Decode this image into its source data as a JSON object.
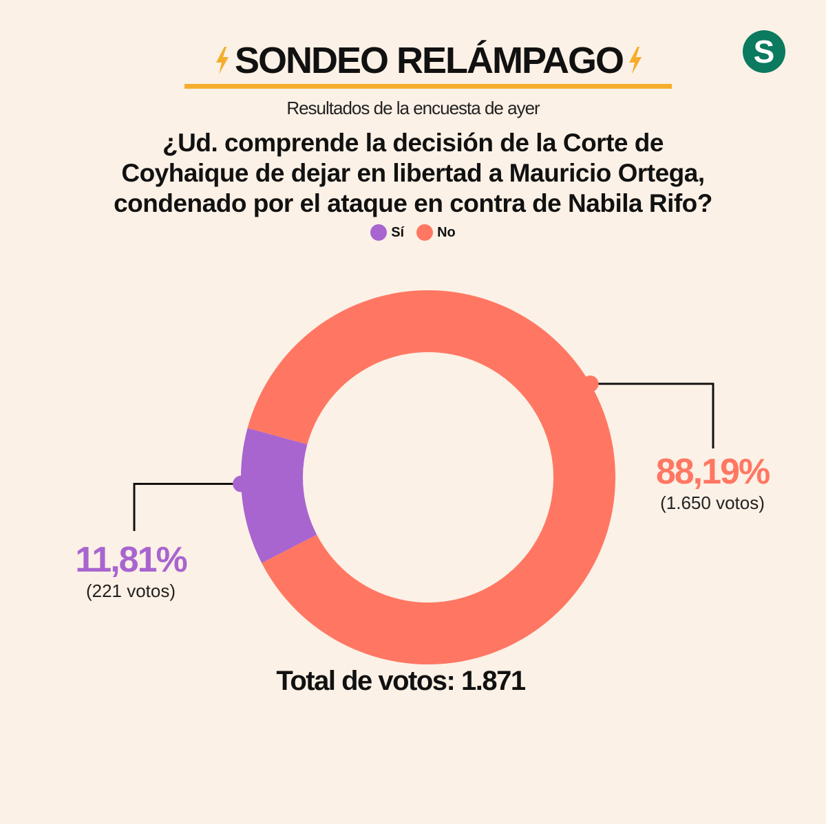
{
  "header": {
    "title": "SONDEO RELÁMPAGO",
    "logo_letter": "S",
    "subtitle": "Resultados de la encuesta de ayer"
  },
  "question": {
    "line1": "¿Ud. comprende la decisión de la Corte de",
    "line2": "Coyhaique de dejar en libertad a Mauricio Ortega,",
    "line3": "condenado por el ataque en contra de Nabila Rifo?"
  },
  "colors": {
    "si": "#a865cf",
    "no": "#ff7763",
    "accent": "#f5ad2c",
    "logo": "#0b7a5e",
    "background": "#fcf1e6"
  },
  "chart_data": {
    "type": "pie",
    "variant": "donut",
    "categories": [
      "Sí",
      "No"
    ],
    "values": [
      11.81,
      88.19
    ],
    "votes": [
      221,
      1650
    ],
    "labels": [
      {
        "name": "Sí",
        "percent_text": "11,81%",
        "votes_text": "(221 votos)"
      },
      {
        "name": "No",
        "percent_text": "88,19%",
        "votes_text": "(1.650 votos)"
      }
    ],
    "legend": {
      "position": "top",
      "items": [
        "Sí",
        "No"
      ]
    },
    "total_text": "Total de votos: 1.871"
  }
}
